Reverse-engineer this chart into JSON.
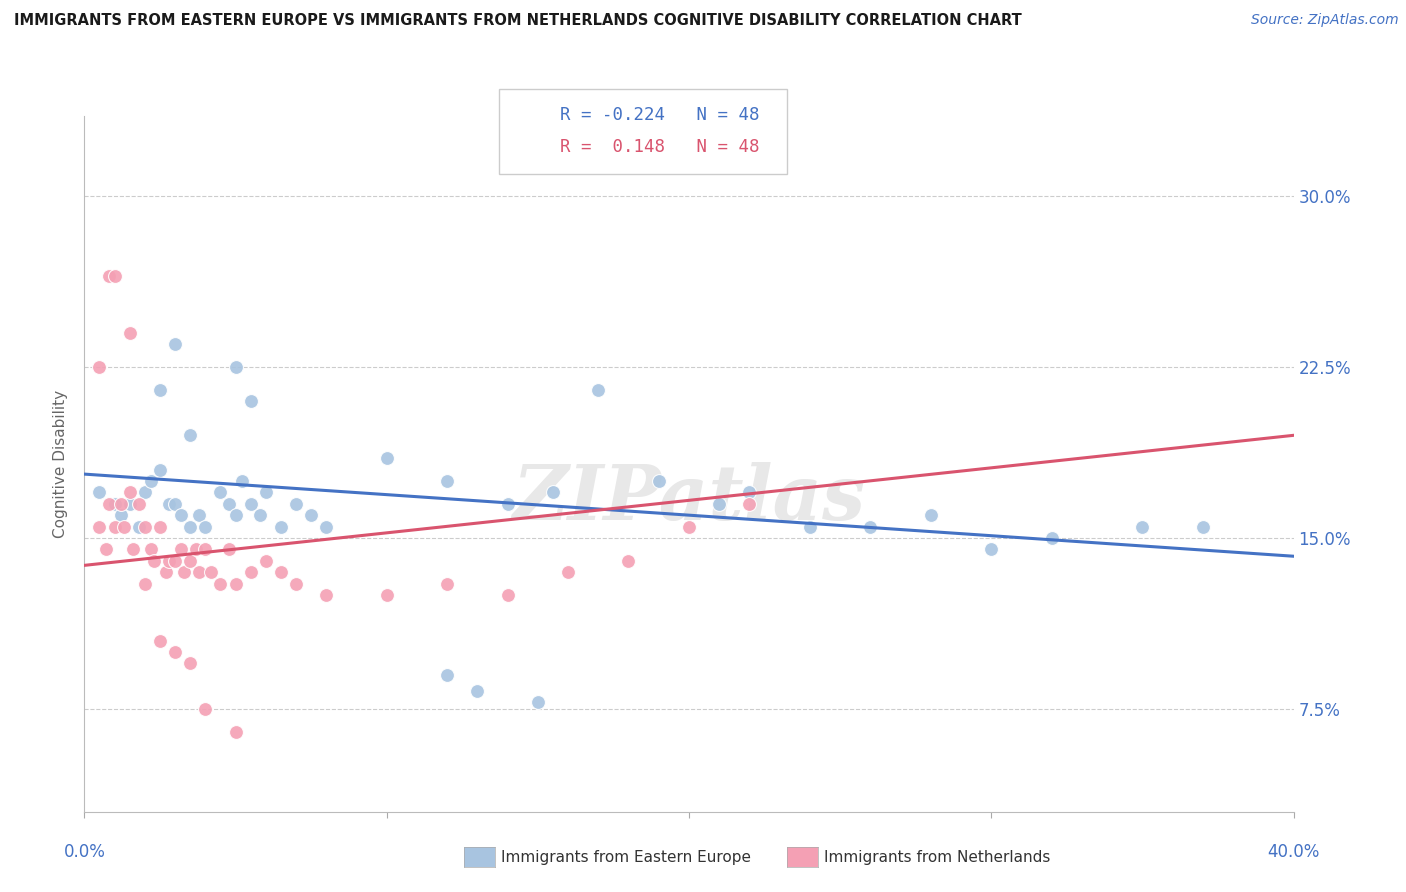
{
  "title": "IMMIGRANTS FROM EASTERN EUROPE VS IMMIGRANTS FROM NETHERLANDS COGNITIVE DISABILITY CORRELATION CHART",
  "source": "Source: ZipAtlas.com",
  "ylabel": "Cognitive Disability",
  "ytick_labels": [
    "7.5%",
    "15.0%",
    "22.5%",
    "30.0%"
  ],
  "ytick_values": [
    0.075,
    0.15,
    0.225,
    0.3
  ],
  "xlim": [
    0.0,
    0.4
  ],
  "ylim": [
    0.03,
    0.335
  ],
  "r_blue": -0.224,
  "r_pink": 0.148,
  "n_blue": 48,
  "n_pink": 48,
  "legend_blue": "Immigrants from Eastern Europe",
  "legend_pink": "Immigrants from Netherlands",
  "watermark": "ZIPatlas",
  "blue_color": "#a8c4e0",
  "pink_color": "#f4a0b4",
  "blue_line_color": "#4472c4",
  "pink_line_color": "#d9546e",
  "title_color": "#1a1a1a",
  "axis_label_color": "#4472c4",
  "background_color": "#ffffff",
  "blue_scatter_x": [
    0.005,
    0.01,
    0.012,
    0.015,
    0.018,
    0.02,
    0.022,
    0.025,
    0.028,
    0.03,
    0.032,
    0.035,
    0.038,
    0.04,
    0.045,
    0.048,
    0.05,
    0.052,
    0.055,
    0.058,
    0.06,
    0.065,
    0.07,
    0.075,
    0.08,
    0.1,
    0.12,
    0.14,
    0.155,
    0.17,
    0.19,
    0.21,
    0.22,
    0.24,
    0.26,
    0.28,
    0.3,
    0.32,
    0.35,
    0.37,
    0.025,
    0.03,
    0.035,
    0.05,
    0.055,
    0.12,
    0.13,
    0.15
  ],
  "blue_scatter_y": [
    0.17,
    0.165,
    0.16,
    0.165,
    0.155,
    0.17,
    0.175,
    0.18,
    0.165,
    0.165,
    0.16,
    0.155,
    0.16,
    0.155,
    0.17,
    0.165,
    0.16,
    0.175,
    0.165,
    0.16,
    0.17,
    0.155,
    0.165,
    0.16,
    0.155,
    0.185,
    0.175,
    0.165,
    0.17,
    0.215,
    0.175,
    0.165,
    0.17,
    0.155,
    0.155,
    0.16,
    0.145,
    0.15,
    0.155,
    0.155,
    0.215,
    0.235,
    0.195,
    0.225,
    0.21,
    0.09,
    0.083,
    0.078
  ],
  "pink_scatter_x": [
    0.005,
    0.007,
    0.008,
    0.01,
    0.012,
    0.013,
    0.015,
    0.016,
    0.018,
    0.02,
    0.022,
    0.023,
    0.025,
    0.027,
    0.028,
    0.03,
    0.032,
    0.033,
    0.035,
    0.037,
    0.038,
    0.04,
    0.042,
    0.045,
    0.048,
    0.05,
    0.055,
    0.06,
    0.065,
    0.07,
    0.08,
    0.1,
    0.12,
    0.14,
    0.16,
    0.18,
    0.2,
    0.22,
    0.005,
    0.008,
    0.01,
    0.015,
    0.02,
    0.025,
    0.03,
    0.035,
    0.04,
    0.05
  ],
  "pink_scatter_y": [
    0.155,
    0.145,
    0.165,
    0.155,
    0.165,
    0.155,
    0.17,
    0.145,
    0.165,
    0.155,
    0.145,
    0.14,
    0.155,
    0.135,
    0.14,
    0.14,
    0.145,
    0.135,
    0.14,
    0.145,
    0.135,
    0.145,
    0.135,
    0.13,
    0.145,
    0.13,
    0.135,
    0.14,
    0.135,
    0.13,
    0.125,
    0.125,
    0.13,
    0.125,
    0.135,
    0.14,
    0.155,
    0.165,
    0.225,
    0.265,
    0.265,
    0.24,
    0.13,
    0.105,
    0.1,
    0.095,
    0.075,
    0.065
  ],
  "blue_line_x": [
    0.0,
    0.4
  ],
  "blue_line_y": [
    0.178,
    0.142
  ],
  "pink_line_x": [
    0.0,
    0.4
  ],
  "pink_line_y": [
    0.138,
    0.195
  ]
}
